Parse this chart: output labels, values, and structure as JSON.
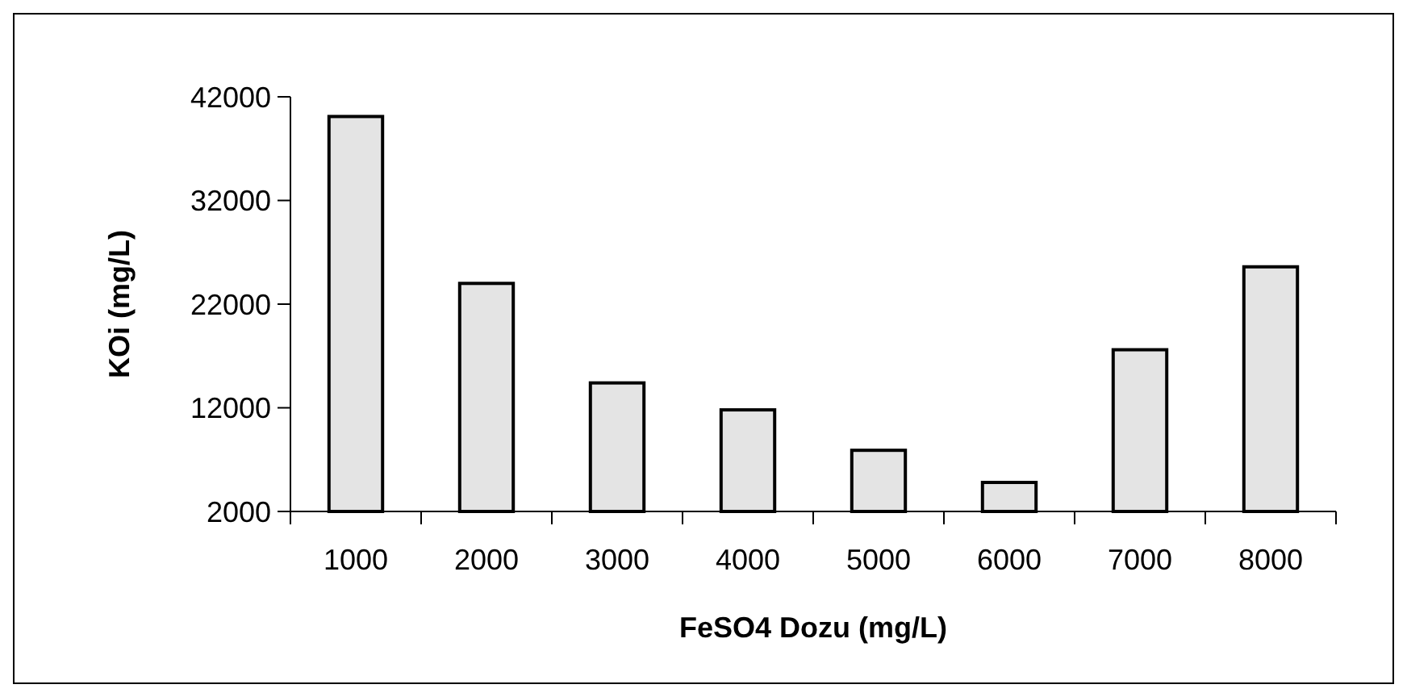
{
  "chart_data": {
    "type": "bar",
    "xlabel": "FeSO4 Dozu (mg/L)",
    "ylabel": "KOi (mg/L)",
    "categories": [
      "1000",
      "2000",
      "3000",
      "4000",
      "5000",
      "6000",
      "7000",
      "8000"
    ],
    "values": [
      40100,
      24000,
      14400,
      11800,
      7900,
      4800,
      17600,
      25600
    ],
    "color": "#e4e4e4",
    "ylim": [
      2000,
      42000
    ],
    "yticks": [
      2000,
      12000,
      22000,
      32000,
      42000
    ],
    "grid": false
  }
}
